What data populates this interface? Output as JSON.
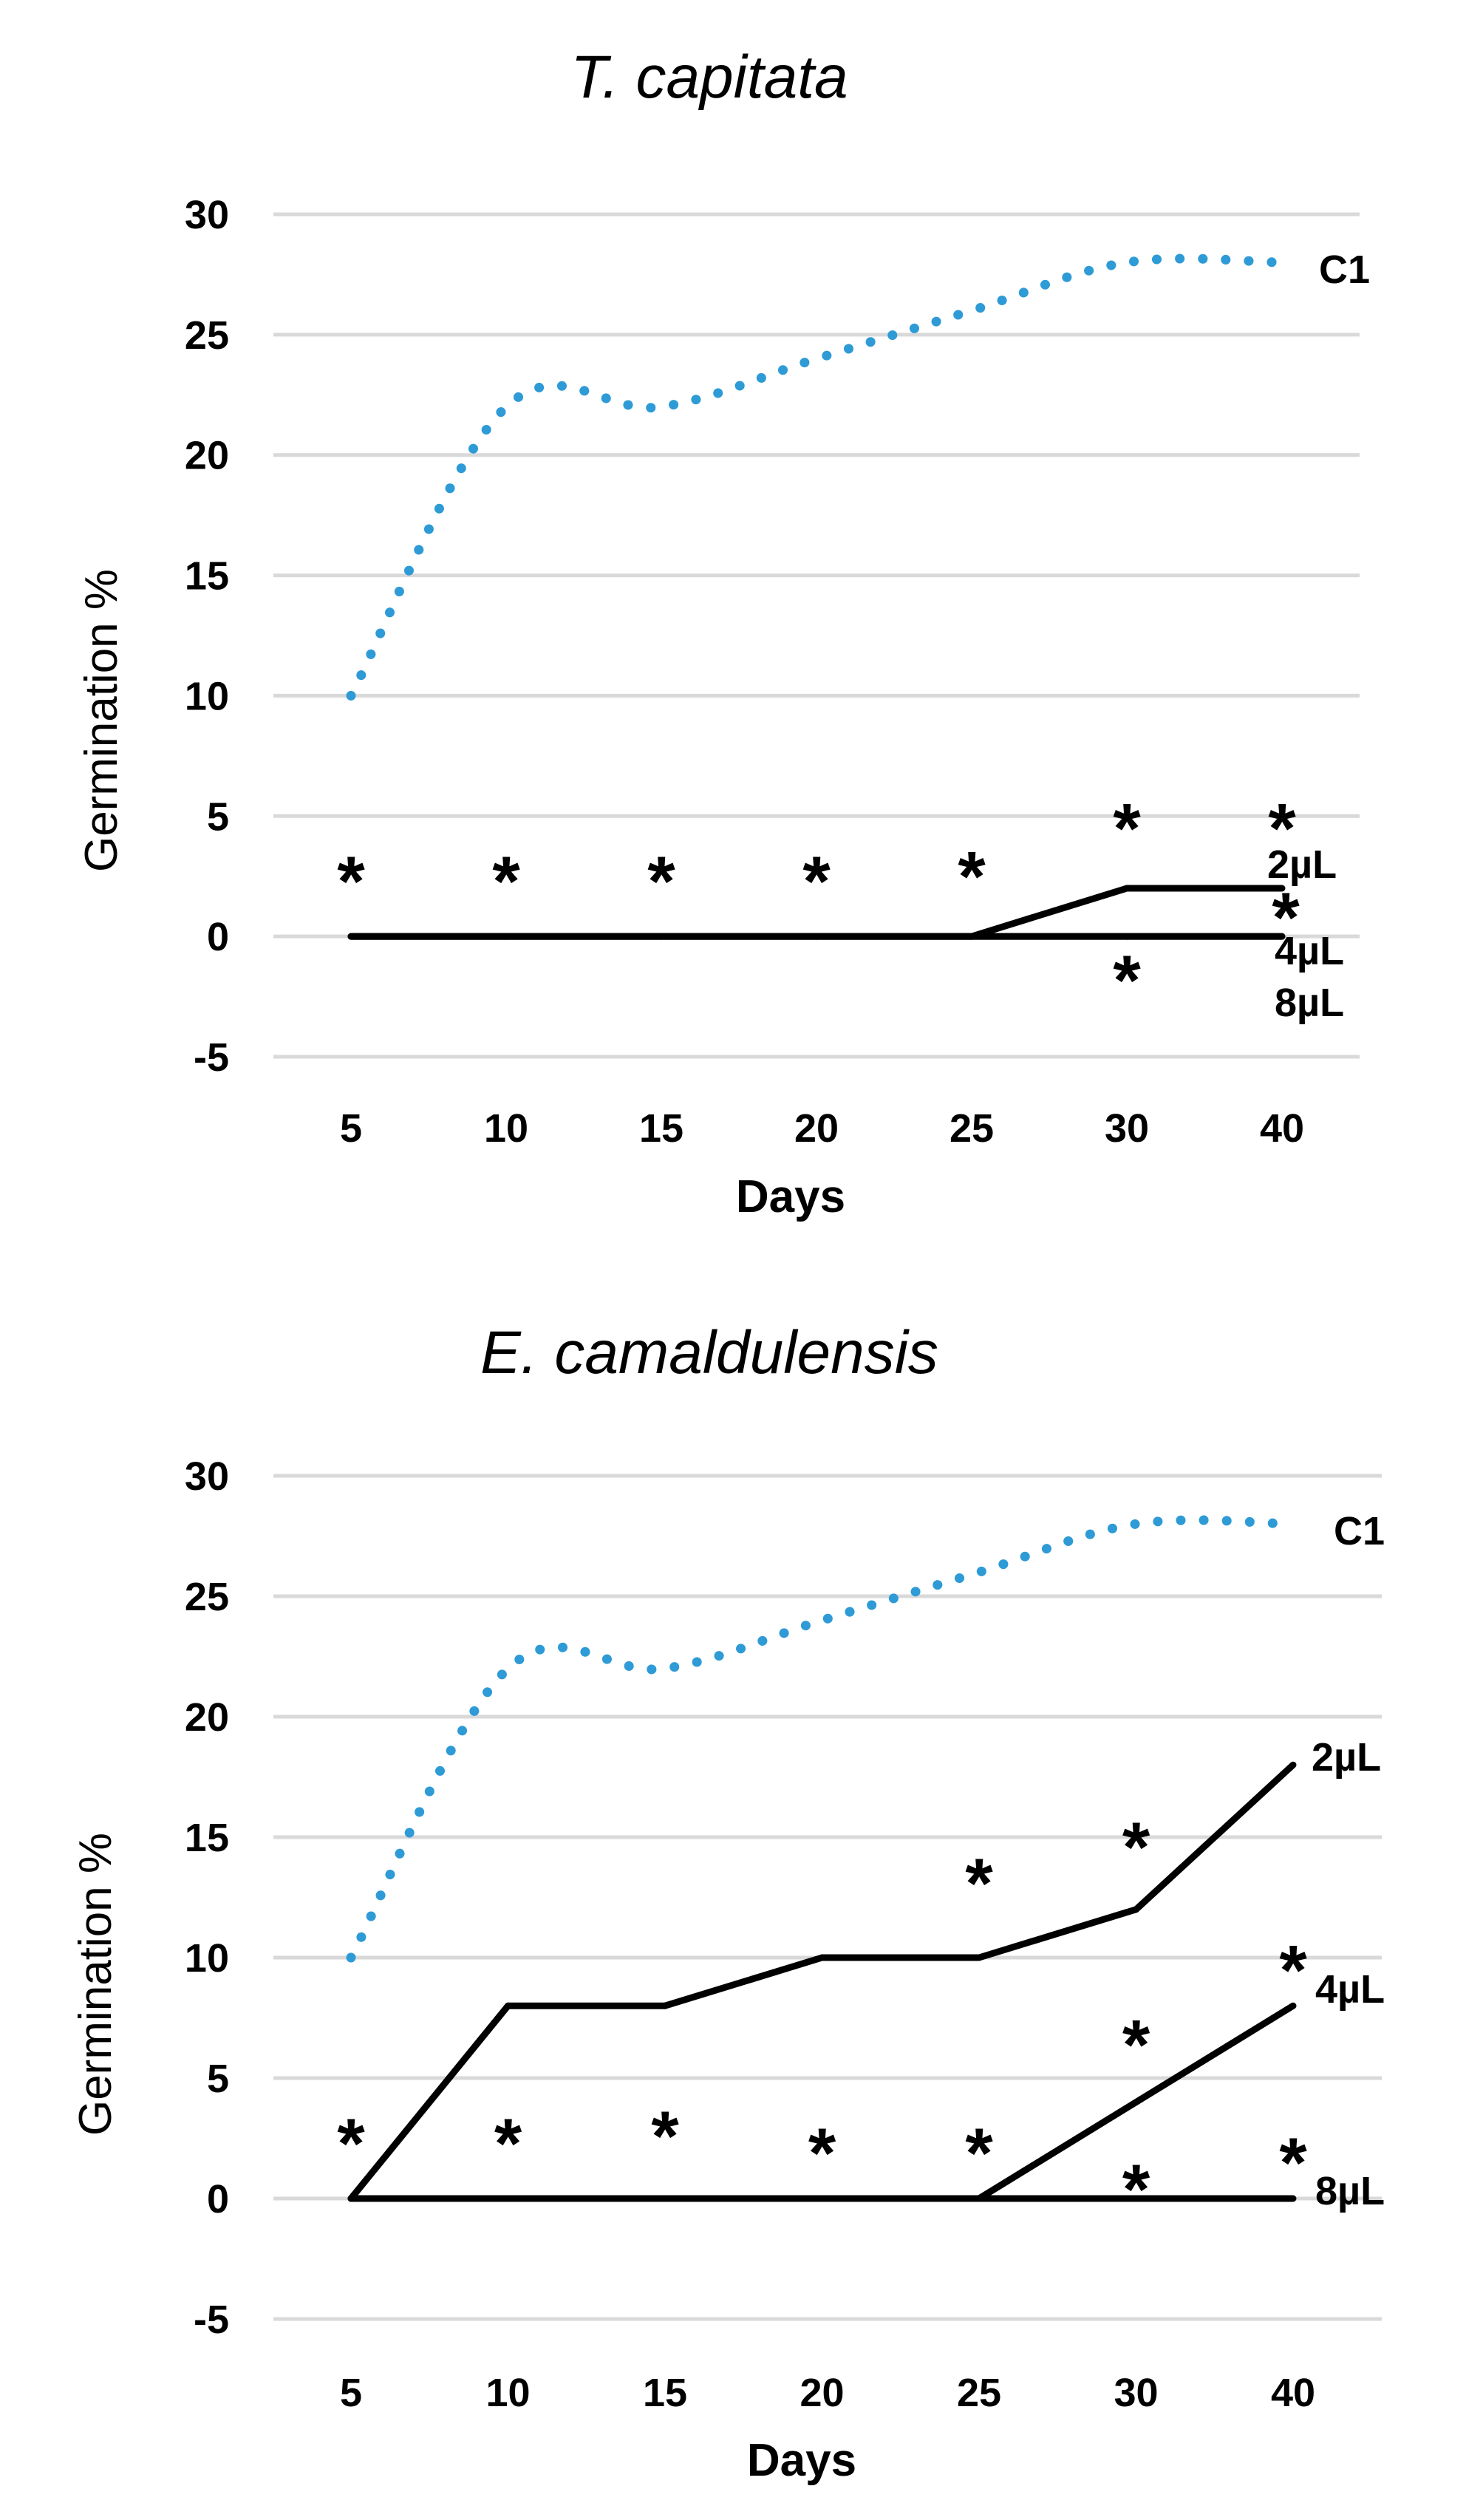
{
  "chart_data": [
    {
      "type": "line",
      "title": "T. capitata",
      "xlabel": "Days",
      "ylabel": "Germination %",
      "categories": [
        "5",
        "10",
        "15",
        "20",
        "25",
        "30",
        "40"
      ],
      "ylim": [
        -5,
        30
      ],
      "yticks": [
        "30",
        "25",
        "20",
        "15",
        "10",
        "5",
        "0",
        "-5"
      ],
      "grid": true,
      "series": [
        {
          "name": "C1",
          "label": "C1",
          "style": "dotted",
          "color": "#2e9bd6",
          "values": [
            10,
            22,
            22,
            24,
            26,
            28,
            28
          ]
        },
        {
          "name": "2µL",
          "label": "2µL",
          "style": "solid",
          "color": "#000000",
          "values": [
            0,
            0,
            0,
            0,
            0,
            2,
            2
          ]
        },
        {
          "name": "4µL",
          "label": "4µL",
          "style": "solid",
          "color": "#000000",
          "values": [
            0,
            0,
            0,
            0,
            0,
            0,
            0
          ]
        },
        {
          "name": "8µL",
          "label": "8µL",
          "style": "solid",
          "color": "#000000",
          "values": [
            0,
            0,
            0,
            0,
            0,
            0,
            0
          ]
        }
      ],
      "annotations": [
        {
          "text": "*",
          "x": "5",
          "y": 2.5
        },
        {
          "text": "*",
          "x": "10",
          "y": 2.5
        },
        {
          "text": "*",
          "x": "15",
          "y": 2.5
        },
        {
          "text": "*",
          "x": "20",
          "y": 2.5
        },
        {
          "text": "*",
          "x": "25",
          "y": 2.7
        },
        {
          "text": "*",
          "x": "30",
          "y": 4.7
        },
        {
          "text": "*",
          "x": "40",
          "y": 4.7
        },
        {
          "text": "*",
          "x": "40",
          "y": 1.0
        },
        {
          "text": "*",
          "x": "30",
          "y": -1.6
        }
      ]
    },
    {
      "type": "line",
      "title": "E. camaldulensis",
      "xlabel": "Days",
      "ylabel": "Germination %",
      "categories": [
        "5",
        "10",
        "15",
        "20",
        "25",
        "30",
        "40"
      ],
      "ylim": [
        -5,
        30
      ],
      "yticks": [
        "30",
        "25",
        "20",
        "15",
        "10",
        "5",
        "0",
        "-5"
      ],
      "grid": true,
      "series": [
        {
          "name": "C1",
          "label": "C1",
          "style": "dotted",
          "color": "#2e9bd6",
          "values": [
            10,
            22,
            22,
            24,
            26,
            28,
            28
          ]
        },
        {
          "name": "2µL",
          "label": "2µL",
          "style": "solid",
          "color": "#000000",
          "values": [
            0,
            8,
            8,
            10,
            10,
            12,
            18
          ]
        },
        {
          "name": "4µL",
          "label": "4µL",
          "style": "solid",
          "color": "#000000",
          "values": [
            0,
            0,
            0,
            0,
            0,
            4,
            8
          ]
        },
        {
          "name": "8µL",
          "label": "8µL",
          "style": "solid",
          "color": "#000000",
          "values": [
            0,
            0,
            0,
            0,
            0,
            0,
            0
          ]
        }
      ],
      "annotations": [
        {
          "text": "*",
          "x": "5",
          "y": 2.5
        },
        {
          "text": "*",
          "x": "10",
          "y": 2.5
        },
        {
          "text": "*",
          "x": "15",
          "y": 2.8
        },
        {
          "text": "*",
          "x": "20",
          "y": 2.1
        },
        {
          "text": "*",
          "x": "25",
          "y": 2.1
        },
        {
          "text": "*",
          "x": "25",
          "y": 13.3
        },
        {
          "text": "*",
          "x": "30",
          "y": 14.8
        },
        {
          "text": "*",
          "x": "40",
          "y": 9.7
        },
        {
          "text": "*",
          "x": "30",
          "y": 6.6
        },
        {
          "text": "*",
          "x": "30",
          "y": 0.6
        },
        {
          "text": "*",
          "x": "40",
          "y": 1.7
        }
      ]
    }
  ]
}
